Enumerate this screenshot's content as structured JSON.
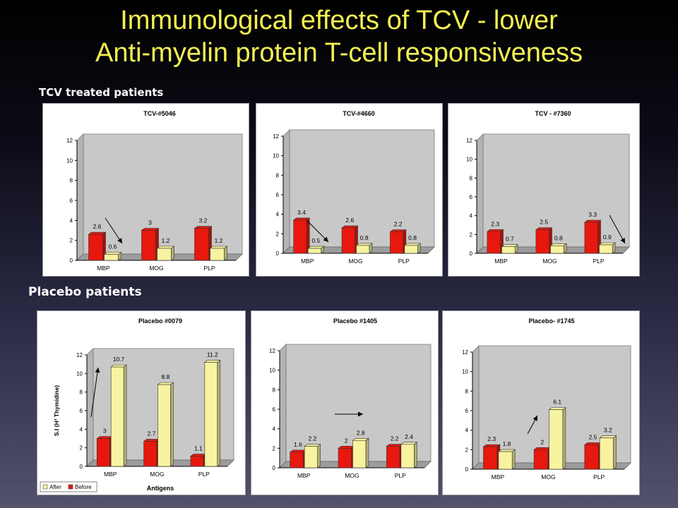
{
  "slide": {
    "title_line1": "Immunological effects of TCV - lower",
    "title_line2": "Anti-myelin protein T-cell responsiveness",
    "section_tcv": "TCV treated patients",
    "section_placebo": "Placebo patients"
  },
  "colors": {
    "title": "#f4f051",
    "before_bar": "#e8180e",
    "after_bar": "#f7f3a0",
    "plot_bg": "#c8c8c8"
  },
  "chart_data": [
    {
      "type": "bar",
      "title": "TCV-#5046",
      "categories": [
        "MBP",
        "MOG",
        "PLP"
      ],
      "series": [
        {
          "name": "Before",
          "values": [
            2.6,
            3,
            3.2
          ]
        },
        {
          "name": "After",
          "values": [
            0.6,
            1.2,
            1.2
          ]
        }
      ],
      "labels": {
        "Before": [
          "2.6",
          "3",
          "3.2"
        ],
        "After": [
          "0.6",
          "1.2",
          "1.2"
        ]
      },
      "ylim": [
        0,
        12
      ],
      "yticks": [
        "0",
        "2",
        "4",
        "6",
        "8",
        "10",
        "12"
      ],
      "annotation": "arrow down"
    },
    {
      "type": "bar",
      "title": "TCV-#4660",
      "categories": [
        "MBP",
        "MOG",
        "PLP"
      ],
      "series": [
        {
          "name": "Before",
          "values": [
            3.4,
            2.6,
            2.2
          ]
        },
        {
          "name": "After",
          "values": [
            0.5,
            0.8,
            0.8
          ]
        }
      ],
      "labels": {
        "Before": [
          "3.4",
          "2.6",
          "2.2"
        ],
        "After": [
          "0.5",
          "0.8",
          "0.8"
        ]
      },
      "ylim": [
        0,
        12
      ],
      "yticks": [
        "0",
        "2",
        "4",
        "6",
        "8",
        "10",
        "12"
      ],
      "annotation": "arrow down"
    },
    {
      "type": "bar",
      "title": "TCV - #7360",
      "categories": [
        "MBP",
        "MOG",
        "PLP"
      ],
      "series": [
        {
          "name": "Before",
          "values": [
            2.3,
            2.5,
            3.3
          ]
        },
        {
          "name": "After",
          "values": [
            0.7,
            0.8,
            0.9
          ]
        }
      ],
      "labels": {
        "Before": [
          "2.3",
          "2.5",
          "3.3"
        ],
        "After": [
          "0.7",
          "0.8",
          "0.9"
        ]
      },
      "ylim": [
        0,
        12
      ],
      "yticks": [
        "0",
        "2",
        "4",
        "6",
        "8",
        "10",
        "12"
      ],
      "annotation": "arrow down"
    },
    {
      "type": "bar",
      "title": "Placebo #0079",
      "categories": [
        "MBP",
        "MOG",
        "PLP"
      ],
      "series": [
        {
          "name": "Before",
          "values": [
            3,
            2.7,
            1.1
          ]
        },
        {
          "name": "After",
          "values": [
            10.7,
            8.8,
            11.2
          ]
        }
      ],
      "labels": {
        "Before": [
          "3",
          "2.7",
          "1.1"
        ],
        "After": [
          "10.7",
          "8.8",
          "11.2"
        ]
      },
      "ylim": [
        0,
        12
      ],
      "yticks": [
        "0",
        "2",
        "4",
        "6",
        "8",
        "10",
        "12"
      ],
      "xlabel": "Antigens",
      "ylabel": "S.I (H³ Thymidine)",
      "legend": {
        "placement": "bottom-left",
        "after_label": "After",
        "before_label": "Before"
      },
      "annotation": "arrow up"
    },
    {
      "type": "bar",
      "title": "Placebo #1405",
      "categories": [
        "MBP",
        "MOG",
        "PLP"
      ],
      "series": [
        {
          "name": "Before",
          "values": [
            1.6,
            2,
            2.2
          ]
        },
        {
          "name": "After",
          "values": [
            2.2,
            2.8,
            2.4
          ]
        }
      ],
      "labels": {
        "Before": [
          "1.6",
          "2",
          "2.2"
        ],
        "After": [
          "2.2",
          "2.8",
          "2.4"
        ]
      },
      "ylim": [
        0,
        12
      ],
      "yticks": [
        "0",
        "2",
        "4",
        "6",
        "8",
        "10",
        "12"
      ],
      "annotation": "arrow right"
    },
    {
      "type": "bar",
      "title": "Placebo- #1745",
      "categories": [
        "MBP",
        "MOG",
        "PLP"
      ],
      "series": [
        {
          "name": "Before",
          "values": [
            2.3,
            2,
            2.5
          ]
        },
        {
          "name": "After",
          "values": [
            1.8,
            6.1,
            3.2
          ]
        }
      ],
      "labels": {
        "Before": [
          "2.3",
          "2",
          "2.5"
        ],
        "After": [
          "1.8",
          "6.1",
          "3.2"
        ]
      },
      "ylim": [
        0,
        12
      ],
      "yticks": [
        "0",
        "2",
        "4",
        "6",
        "8",
        "10",
        "12"
      ],
      "annotation": "arrow up"
    }
  ]
}
